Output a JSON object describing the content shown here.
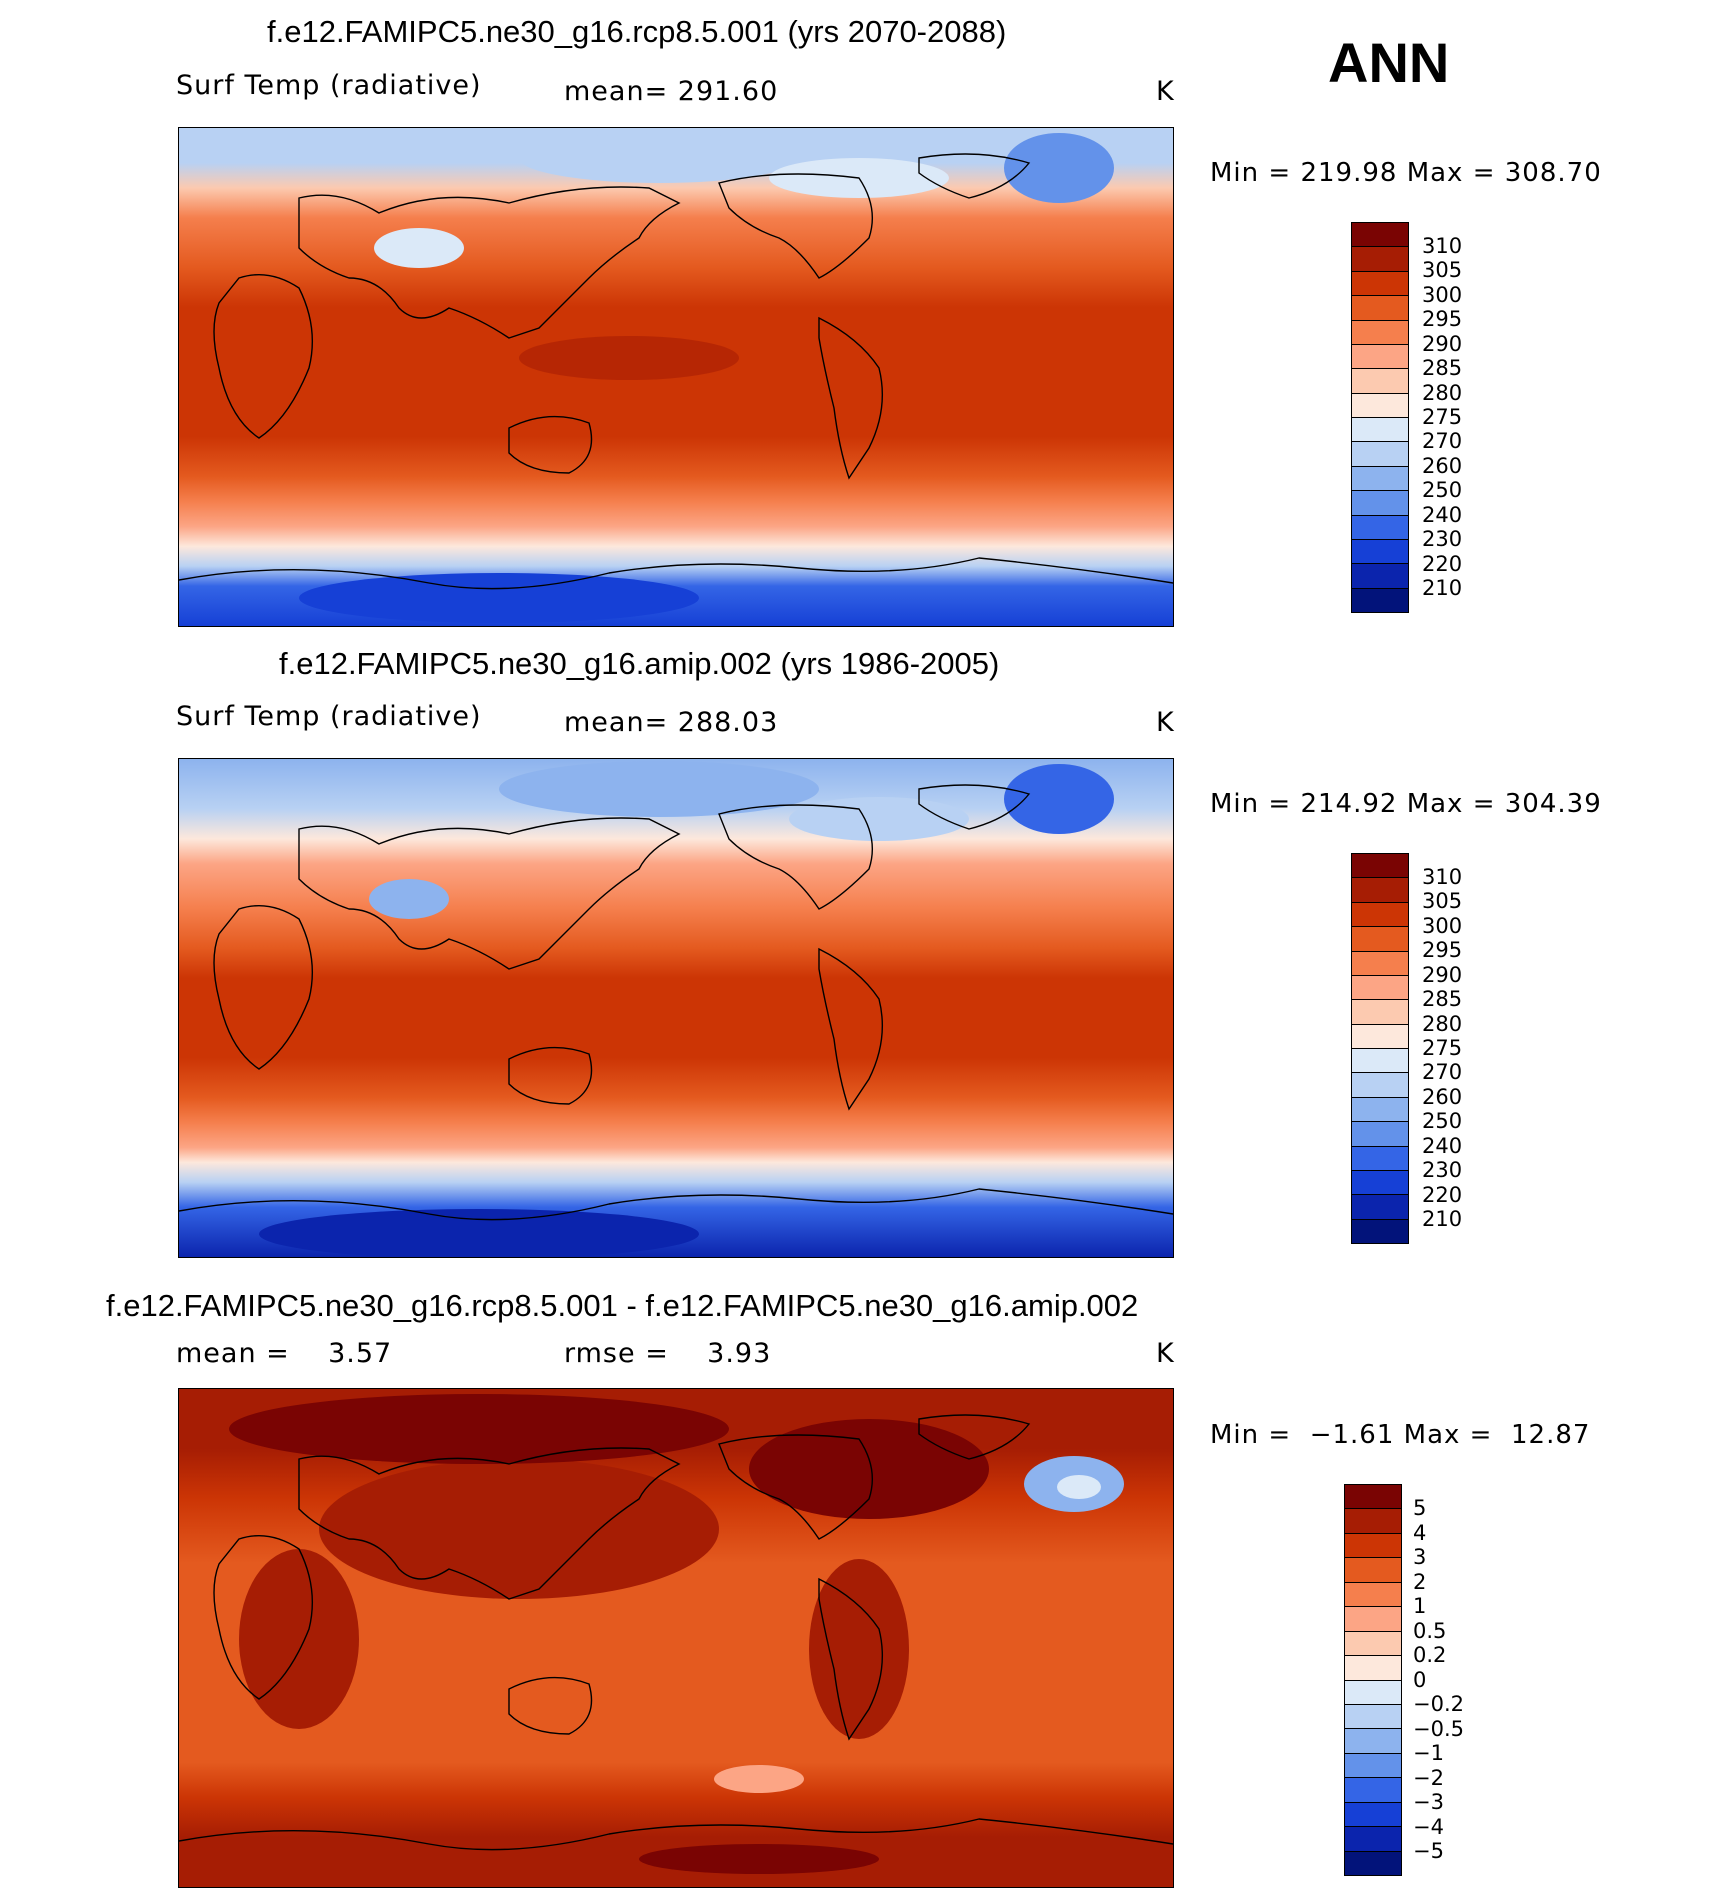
{
  "annual_label": "ANN",
  "units": "K",
  "panels": [
    {
      "title": "f.e12.FAMIPC5.ne30_g16.rcp8.5.001 (yrs 2070-2088)",
      "variable": "Surf Temp (radiative)",
      "mean_text": "mean= 291.60",
      "minmax_text": "Min = 219.98 Max = 308.70"
    },
    {
      "title": "f.e12.FAMIPC5.ne30_g16.amip.002 (yrs 1986-2005)",
      "variable": "Surf Temp (radiative)",
      "mean_text": "mean= 288.03",
      "minmax_text": "Min = 214.92 Max = 304.39"
    },
    {
      "title": "f.e12.FAMIPC5.ne30_g16.rcp8.5.001 - f.e12.FAMIPC5.ne30_g16.amip.002",
      "mean_text": "mean =    3.57",
      "rmse_text": "rmse =    3.93",
      "minmax_text": "Min =  −1.61 Max =  12.87"
    }
  ],
  "temp_colorbar": {
    "labels": [
      "310",
      "305",
      "300",
      "295",
      "290",
      "285",
      "280",
      "275",
      "270",
      "260",
      "250",
      "240",
      "230",
      "220",
      "210"
    ],
    "colors": [
      "#7a0403",
      "#a61d04",
      "#cc3505",
      "#e45a1f",
      "#f57f4d",
      "#fca585",
      "#fccab0",
      "#fde8dc",
      "#dbe9f8",
      "#b8d1f3",
      "#8db3ee",
      "#6392ea",
      "#3465e6",
      "#1640d6",
      "#0b24ad",
      "#02137a"
    ]
  },
  "diff_colorbar": {
    "labels": [
      "5",
      "4",
      "3",
      "2",
      "1",
      "0.5",
      "0.2",
      "0",
      "−0.2",
      "−0.5",
      "−1",
      "−2",
      "−3",
      "−4",
      "−5"
    ],
    "colors": [
      "#7a0403",
      "#a61d04",
      "#cc3505",
      "#e45a1f",
      "#f57f4d",
      "#fca585",
      "#fccab0",
      "#fde8dc",
      "#dbe9f8",
      "#b8d1f3",
      "#8db3ee",
      "#6392ea",
      "#3465e6",
      "#1640d6",
      "#0b24ad",
      "#02137a"
    ]
  }
}
